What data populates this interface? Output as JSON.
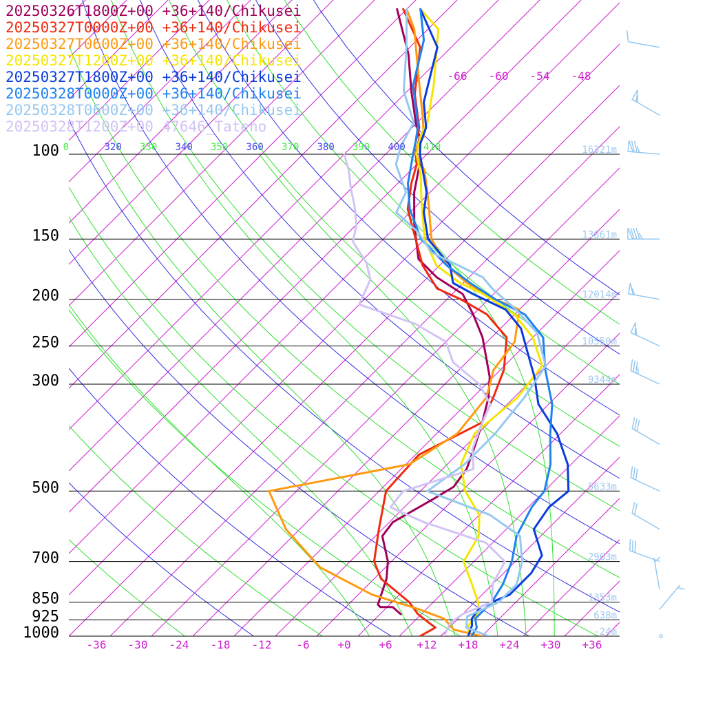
{
  "chart_data": {
    "type": "line",
    "legend": [
      {
        "text": "20250326T1800Z+00 +36+140/Chikusei",
        "color": "#a0005a"
      },
      {
        "text": "20250327T0000Z+00 +36+140/Chikusei",
        "color": "#f02a10"
      },
      {
        "text": "20250327T0600Z+00 +36+140/Chikusei",
        "color": "#ff9a10"
      },
      {
        "text": "20250327T1200Z+00 +36+140/Chikusei",
        "color": "#f5e600"
      },
      {
        "text": "20250327T1800Z+00 +36+140/Chikusei",
        "color": "#0a3cdc"
      },
      {
        "text": "20250328T0000Z+00 +36+140/Chikusei",
        "color": "#1e82f0"
      },
      {
        "text": "20250328T0600Z+00 +36+140/Chikusei",
        "color": "#96c8f0"
      },
      {
        "text": "20250328T1200Z+00 47646_Tateno",
        "color": "#d2c3f5"
      }
    ],
    "pressure_ticks": [
      "100",
      "150",
      "200",
      "250",
      "300",
      "500",
      "700",
      "850",
      "925",
      "1000"
    ],
    "pressure_values": [
      100,
      150,
      200,
      250,
      300,
      500,
      700,
      850,
      925,
      1000
    ],
    "height_labels": [
      {
        "p": 100,
        "text": "16321m"
      },
      {
        "p": 150,
        "text": "13861m"
      },
      {
        "p": 200,
        "text": "12014m"
      },
      {
        "p": 250,
        "text": "10550m"
      },
      {
        "p": 300,
        "text": "9344m"
      },
      {
        "p": 500,
        "text": "5633m"
      },
      {
        "p": 700,
        "text": "2963m"
      },
      {
        "p": 850,
        "text": "1353m"
      },
      {
        "p": 925,
        "text": "638m"
      },
      {
        "p": 1000,
        "text": "-24m"
      }
    ],
    "temperature_ticks": [
      "-36",
      "-30",
      "-24",
      "-18",
      "-12",
      "-6",
      "+0",
      "+6",
      "+12",
      "+18",
      "+24",
      "+30",
      "+36"
    ],
    "temperature_values": [
      -36,
      -30,
      -24,
      -18,
      -12,
      -6,
      0,
      6,
      12,
      18,
      24,
      30,
      36
    ],
    "isotherm_top_labels": [
      "-66",
      "-60",
      "-54",
      "-48"
    ],
    "theta_labels": [
      {
        "text": "0",
        "color": "#44ee44"
      },
      {
        "text": "320",
        "color": "#4444ee"
      },
      {
        "text": "330",
        "color": "#44ee44"
      },
      {
        "text": "340",
        "color": "#4444ee"
      },
      {
        "text": "350",
        "color": "#44ee44"
      },
      {
        "text": "360",
        "color": "#4444ee"
      },
      {
        "text": "370",
        "color": "#44ee44"
      },
      {
        "text": "380",
        "color": "#4444ee"
      },
      {
        "text": "390",
        "color": "#44ee44"
      },
      {
        "text": "400",
        "color": "#4444ee"
      },
      {
        "text": "410",
        "color": "#44ee44"
      }
    ],
    "xlim": [
      -40,
      40
    ],
    "ylim": [
      1000,
      100
    ],
    "colors": {
      "isobar": "#000000",
      "isotherm": "#d020d0",
      "dry_adiabat": "#3030e0",
      "moist_adiabat": "#30e030",
      "height_label": "#a0c8f0",
      "wind_barb": "#96c8f0"
    },
    "series": [
      {
        "name": "20250326T1800Z+00 +36+140/Chikusei",
        "color": "#a0005a",
        "points": [
          [
            900,
            5.0
          ],
          [
            870,
            2.8
          ],
          [
            870,
            1.0
          ],
          [
            860,
            0.3
          ],
          [
            760,
            -2.2
          ],
          [
            700,
            -4.5
          ],
          [
            620,
            -9.0
          ],
          [
            580,
            -9.5
          ],
          [
            520,
            -7.0
          ],
          [
            490,
            -5.8
          ],
          [
            450,
            -6.5
          ],
          [
            400,
            -8.8
          ],
          [
            360,
            -11.0
          ],
          [
            320,
            -13.7
          ],
          [
            290,
            -16.5
          ],
          [
            240,
            -23.3
          ],
          [
            215,
            -28.0
          ],
          [
            195,
            -32.5
          ],
          [
            180,
            -38.7
          ],
          [
            165,
            -44.0
          ],
          [
            140,
            -49.6
          ],
          [
            120,
            -54.3
          ],
          [
            104,
            -57.8
          ],
          [
            100,
            -59.5
          ],
          [
            92,
            -61.6
          ],
          [
            86,
            -64.2
          ],
          [
            74,
            -69.4
          ],
          [
            62,
            -75.2
          ],
          [
            50,
            -83.4
          ]
        ]
      },
      {
        "name": "20250327T0000Z+00 +36+140/Chikusei",
        "color": "#f02a10",
        "points": [
          [
            1000,
            11.0
          ],
          [
            960,
            12.0
          ],
          [
            940,
            10.5
          ],
          [
            900,
            7.5
          ],
          [
            850,
            4.5
          ],
          [
            760,
            -3.0
          ],
          [
            700,
            -6.5
          ],
          [
            600,
            -10.5
          ],
          [
            500,
            -15.0
          ],
          [
            420,
            -15.5
          ],
          [
            360,
            -11.0
          ],
          [
            320,
            -13.0
          ],
          [
            280,
            -15.5
          ],
          [
            240,
            -19.8
          ],
          [
            215,
            -26.0
          ],
          [
            200,
            -32.0
          ],
          [
            190,
            -37.0
          ],
          [
            170,
            -42.5
          ],
          [
            150,
            -47.3
          ],
          [
            130,
            -52.8
          ],
          [
            115,
            -56.0
          ],
          [
            105,
            -58.0
          ],
          [
            96,
            -61.0
          ],
          [
            88,
            -63.0
          ],
          [
            75,
            -68.5
          ],
          [
            60,
            -74.5
          ],
          [
            50,
            -82.5
          ]
        ]
      },
      {
        "name": "20250327T0600Z+00 +36+140/Chikusei",
        "color": "#ff9a10",
        "points": [
          [
            1000,
            20.0
          ],
          [
            970,
            15.0
          ],
          [
            920,
            12.0
          ],
          [
            880,
            7.0
          ],
          [
            820,
            -2.0
          ],
          [
            720,
            -13.5
          ],
          [
            600,
            -24.0
          ],
          [
            500,
            -32.0
          ],
          [
            440,
            -15.5
          ],
          [
            380,
            -13.0
          ],
          [
            320,
            -14.0
          ],
          [
            280,
            -17.0
          ],
          [
            245,
            -18.0
          ],
          [
            210,
            -22.0
          ],
          [
            200,
            -27.0
          ],
          [
            185,
            -33.5
          ],
          [
            170,
            -39.0
          ],
          [
            150,
            -45.0
          ],
          [
            125,
            -51.0
          ],
          [
            108,
            -56.0
          ],
          [
            98,
            -60.5
          ],
          [
            92,
            -61.0
          ],
          [
            85,
            -63.5
          ],
          [
            70,
            -70.0
          ],
          [
            55,
            -78.0
          ],
          [
            50,
            -82.0
          ]
        ]
      },
      {
        "name": "20250327T1200Z+00 +36+140/Chikusei",
        "color": "#f5e600",
        "points": [
          [
            1000,
            18.0
          ],
          [
            950,
            16.5
          ],
          [
            890,
            16.0
          ],
          [
            850,
            14.5
          ],
          [
            780,
            11.0
          ],
          [
            700,
            6.5
          ],
          [
            620,
            5.0
          ],
          [
            560,
            2.0
          ],
          [
            500,
            -3.5
          ],
          [
            440,
            -8.0
          ],
          [
            380,
            -10.5
          ],
          [
            320,
            -9.5
          ],
          [
            275,
            -10.5
          ],
          [
            240,
            -16.0
          ],
          [
            215,
            -22.0
          ],
          [
            195,
            -29.5
          ],
          [
            185,
            -34.5
          ],
          [
            170,
            -40.5
          ],
          [
            150,
            -46.0
          ],
          [
            125,
            -52.0
          ],
          [
            110,
            -56.0
          ],
          [
            100,
            -59.5
          ],
          [
            92,
            -61.5
          ],
          [
            86,
            -62.5
          ],
          [
            72,
            -67.0
          ],
          [
            55,
            -74.5
          ],
          [
            50,
            -80.0
          ]
        ]
      },
      {
        "name": "20250327T1800Z+00 +36+140/Chikusei",
        "color": "#0a3cdc",
        "points": [
          [
            1000,
            18.0
          ],
          [
            950,
            17.0
          ],
          [
            920,
            16.0
          ],
          [
            870,
            15.5
          ],
          [
            820,
            18.0
          ],
          [
            740,
            18.0
          ],
          [
            680,
            17.0
          ],
          [
            600,
            12.0
          ],
          [
            540,
            11.0
          ],
          [
            500,
            11.5
          ],
          [
            440,
            7.5
          ],
          [
            380,
            1.5
          ],
          [
            330,
            -5.5
          ],
          [
            290,
            -10.0
          ],
          [
            255,
            -15.0
          ],
          [
            230,
            -19.0
          ],
          [
            210,
            -24.0
          ],
          [
            195,
            -31.0
          ],
          [
            185,
            -35.5
          ],
          [
            170,
            -38.5
          ],
          [
            150,
            -45.5
          ],
          [
            132,
            -50.0
          ],
          [
            120,
            -52.5
          ],
          [
            100,
            -59.0
          ],
          [
            95,
            -60.5
          ],
          [
            88,
            -62.0
          ],
          [
            78,
            -66.0
          ],
          [
            60,
            -72.0
          ],
          [
            50,
            -80.0
          ]
        ]
      },
      {
        "name": "20250328T0000Z+00 +36+140/Chikusei",
        "color": "#1e82f0",
        "points": [
          [
            1000,
            18.5
          ],
          [
            960,
            18.0
          ],
          [
            920,
            16.5
          ],
          [
            850,
            16.5
          ],
          [
            780,
            15.5
          ],
          [
            700,
            13.5
          ],
          [
            620,
            10.5
          ],
          [
            540,
            8.5
          ],
          [
            500,
            8.0
          ],
          [
            440,
            5.0
          ],
          [
            380,
            0.5
          ],
          [
            330,
            -3.5
          ],
          [
            280,
            -9.5
          ],
          [
            240,
            -14.5
          ],
          [
            215,
            -20.5
          ],
          [
            200,
            -27.0
          ],
          [
            185,
            -33.0
          ],
          [
            170,
            -39.0
          ],
          [
            150,
            -46.5
          ],
          [
            130,
            -52.5
          ],
          [
            115,
            -56.5
          ],
          [
            100,
            -60.0
          ],
          [
            94,
            -61.5
          ],
          [
            87,
            -63.5
          ],
          [
            72,
            -70.0
          ],
          [
            58,
            -75.0
          ],
          [
            50,
            -80.0
          ]
        ]
      },
      {
        "name": "20250328T0600Z+00 +36+140/Chikusei",
        "color": "#96c8f0",
        "points": [
          [
            1000,
            21.0
          ],
          [
            960,
            16.5
          ],
          [
            910,
            15.0
          ],
          [
            850,
            17.5
          ],
          [
            780,
            17.5
          ],
          [
            700,
            15.0
          ],
          [
            620,
            11.0
          ],
          [
            560,
            3.5
          ],
          [
            500,
            -9.0
          ],
          [
            440,
            -7.5
          ],
          [
            380,
            -7.5
          ],
          [
            320,
            -8.5
          ],
          [
            275,
            -10.0
          ],
          [
            235,
            -16.0
          ],
          [
            210,
            -22.5
          ],
          [
            190,
            -29.0
          ],
          [
            180,
            -32.0
          ],
          [
            160,
            -43.0
          ],
          [
            145,
            -48.0
          ],
          [
            132,
            -54.0
          ],
          [
            120,
            -55.5
          ],
          [
            105,
            -61.0
          ],
          [
            96,
            -63.0
          ],
          [
            86,
            -64.5
          ],
          [
            74,
            -70.5
          ],
          [
            60,
            -76.5
          ],
          [
            50,
            -82.0
          ]
        ]
      },
      {
        "name": "20250328T1200Z+00 47646_Tateno",
        "color": "#d2c3f5",
        "points": [
          [
            1000,
            14.5
          ],
          [
            970,
            14.0
          ],
          [
            940,
            13.5
          ],
          [
            900,
            14.0
          ],
          [
            850,
            16.5
          ],
          [
            780,
            14.0
          ],
          [
            700,
            12.5
          ],
          [
            640,
            7.0
          ],
          [
            580,
            -5.0
          ],
          [
            540,
            -12.0
          ],
          [
            500,
            -12.5
          ],
          [
            450,
            -5.5
          ],
          [
            410,
            -8.5
          ],
          [
            370,
            -10.5
          ],
          [
            330,
            -12.5
          ],
          [
            300,
            -17.0
          ],
          [
            270,
            -24.0
          ],
          [
            245,
            -28.0
          ],
          [
            225,
            -35.0
          ],
          [
            205,
            -46.0
          ],
          [
            182,
            -48.0
          ],
          [
            168,
            -51.0
          ],
          [
            152,
            -56.0
          ],
          [
            140,
            -58.0
          ],
          [
            128,
            -61.0
          ],
          [
            118,
            -64.0
          ],
          [
            108,
            -67.0
          ],
          [
            100,
            -70.0
          ]
        ]
      }
    ],
    "wind_barbs": [
      {
        "p": 60,
        "speed_kt": 10,
        "dir_deg": 280
      },
      {
        "p": 83,
        "speed_kt": 55,
        "dir_deg": 300
      },
      {
        "p": 100,
        "speed_kt": 75,
        "dir_deg": 275
      },
      {
        "p": 150,
        "speed_kt": 85,
        "dir_deg": 270
      },
      {
        "p": 200,
        "speed_kt": 55,
        "dir_deg": 280
      },
      {
        "p": 250,
        "speed_kt": 55,
        "dir_deg": 295
      },
      {
        "p": 300,
        "speed_kt": 35,
        "dir_deg": 295
      },
      {
        "p": 400,
        "speed_kt": 30,
        "dir_deg": 300
      },
      {
        "p": 500,
        "speed_kt": 30,
        "dir_deg": 295
      },
      {
        "p": 600,
        "speed_kt": 20,
        "dir_deg": 300
      },
      {
        "p": 700,
        "speed_kt": 30,
        "dir_deg": 290
      },
      {
        "p": 800,
        "speed_kt": 5,
        "dir_deg": 350
      },
      {
        "p": 880,
        "speed_kt": 5,
        "dir_deg": 40
      },
      {
        "p": 1000,
        "speed_kt": 0,
        "dir_deg": 0
      }
    ]
  }
}
